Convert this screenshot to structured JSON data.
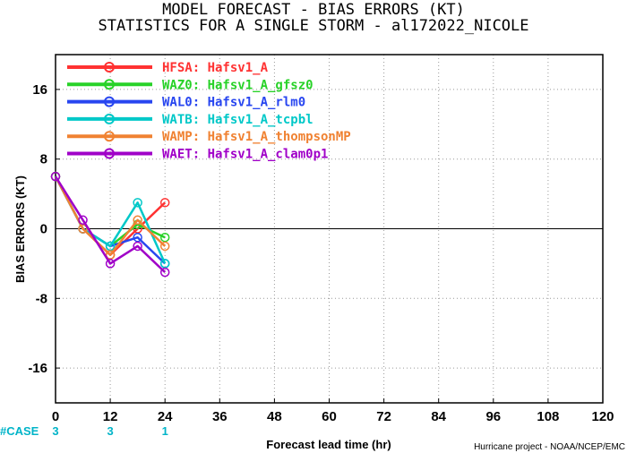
{
  "header": {
    "title": "MODEL FORECAST - BIAS ERRORS (KT)",
    "subtitle": "STATISTICS FOR A SINGLE STORM - al172022_NICOLE"
  },
  "chart_data": {
    "type": "line",
    "title": "MODEL FORECAST - BIAS ERRORS (KT)",
    "subtitle": "STATISTICS FOR A SINGLE STORM - al172022_NICOLE",
    "xlabel": "Forecast lead time (hr)",
    "ylabel": "BIAS ERRORS (KT)",
    "xlim": [
      0,
      120
    ],
    "ylim": [
      -20,
      20
    ],
    "xticks": [
      0,
      12,
      24,
      36,
      48,
      60,
      72,
      84,
      96,
      108,
      120
    ],
    "yticks": [
      -16,
      -8,
      0,
      8,
      16
    ],
    "grid": true,
    "legend_position": "top-left",
    "zero_line": true,
    "x": [
      0,
      6,
      12,
      18,
      24
    ],
    "series": [
      {
        "name": "HFSA: Hafsv1_A",
        "color": "#ff3232",
        "values": [
          6,
          0,
          -3,
          0,
          3
        ]
      },
      {
        "name": "WAZ0: Hafsv1_A_gfsz0",
        "color": "#28d228",
        "values": [
          6,
          0,
          -2,
          0.5,
          -1
        ]
      },
      {
        "name": "WAL0: Hafsv1_A_rlm0",
        "color": "#2846f0",
        "values": [
          6,
          0,
          -2,
          -1,
          -4
        ]
      },
      {
        "name": "WATB: Hafsv1_A_tcpbl",
        "color": "#00c8c8",
        "values": [
          6,
          0,
          -2,
          3,
          -4
        ]
      },
      {
        "name": "WAMP: Hafsv1_A_thompsonMP",
        "color": "#f08232",
        "values": [
          6,
          0,
          -3,
          1,
          -2
        ]
      },
      {
        "name": "WAET: Hafsv1_A_clam0p1",
        "color": "#a000c8",
        "values": [
          6,
          1,
          -4,
          -2,
          -5
        ]
      }
    ],
    "case_label": "#CASE",
    "case_counts": [
      {
        "x": 0,
        "label": "3"
      },
      {
        "x": 12,
        "label": "3"
      },
      {
        "x": 24,
        "label": "1"
      }
    ],
    "credit": "Hurricane project - NOAA/NCEP/EMC"
  }
}
